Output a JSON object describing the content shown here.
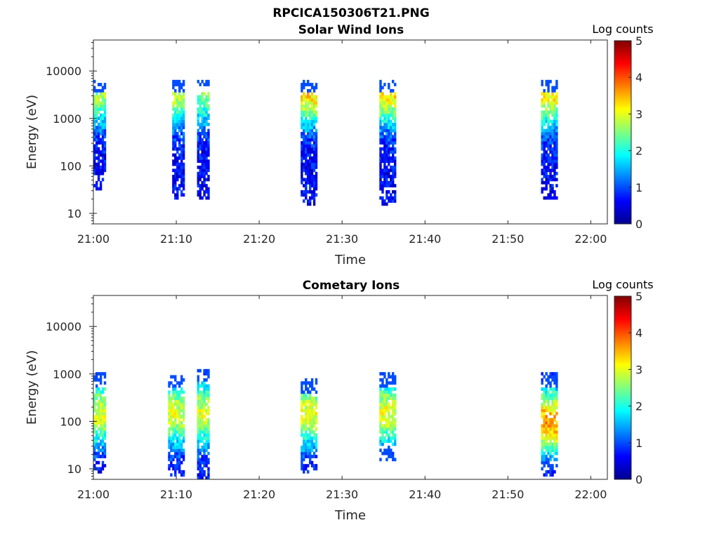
{
  "figure_title": "RPCICA150306T21.PNG",
  "chart_data": [
    {
      "type": "heatmap",
      "title": "Solar Wind Ions",
      "xlabel": "Time",
      "ylabel": "Energy (eV)",
      "x_ticks": [
        "21:00",
        "21:10",
        "21:20",
        "21:30",
        "21:40",
        "21:50",
        "22:00"
      ],
      "x_range": [
        "21:00",
        "22:02"
      ],
      "y_scale": "log",
      "y_ticks": [
        10,
        100,
        1000,
        10000
      ],
      "y_range": [
        6,
        45000
      ],
      "colorbar": {
        "label": "Log counts",
        "range": [
          0,
          5
        ],
        "ticks": [
          0,
          1,
          2,
          3,
          4,
          5
        ],
        "colormap": "jet"
      },
      "bursts": [
        {
          "t_start": "21:00",
          "t_end": "21:01.5",
          "e_low": 30,
          "e_high": 7000,
          "peak_log_counts": 2.7,
          "peak_energy": 3500
        },
        {
          "t_start": "21:09.5",
          "t_end": "21:11",
          "e_low": 20,
          "e_high": 7000,
          "peak_log_counts": 2.8,
          "peak_energy": 3500
        },
        {
          "t_start": "21:12.5",
          "t_end": "21:14",
          "e_low": 20,
          "e_high": 7000,
          "peak_log_counts": 2.5,
          "peak_energy": 3500
        },
        {
          "t_start": "21:25",
          "t_end": "21:27",
          "e_low": 15,
          "e_high": 7000,
          "peak_log_counts": 3.3,
          "peak_energy": 3500
        },
        {
          "t_start": "21:34.5",
          "t_end": "21:36.5",
          "e_low": 15,
          "e_high": 7000,
          "peak_log_counts": 3.2,
          "peak_energy": 3500
        },
        {
          "t_start": "21:54",
          "t_end": "21:56",
          "e_low": 20,
          "e_high": 7000,
          "peak_log_counts": 3.2,
          "peak_energy": 3500
        }
      ]
    },
    {
      "type": "heatmap",
      "title": "Cometary Ions",
      "xlabel": "Time",
      "ylabel": "Energy (eV)",
      "x_ticks": [
        "21:00",
        "21:10",
        "21:20",
        "21:30",
        "21:40",
        "21:50",
        "22:00"
      ],
      "x_range": [
        "21:00",
        "22:02"
      ],
      "y_scale": "log",
      "y_ticks": [
        10,
        100,
        1000,
        10000
      ],
      "y_range": [
        6,
        45000
      ],
      "colorbar": {
        "label": "Log counts",
        "range": [
          0,
          5
        ],
        "ticks": [
          0,
          1,
          2,
          3,
          4,
          5
        ],
        "colormap": "jet"
      },
      "bursts": [
        {
          "t_start": "21:00",
          "t_end": "21:01.5",
          "e_low": 8,
          "e_high": 1100,
          "peak_log_counts": 2.9,
          "peak_energy": 150
        },
        {
          "t_start": "21:09",
          "t_end": "21:11",
          "e_low": 7,
          "e_high": 1000,
          "peak_log_counts": 2.9,
          "peak_energy": 150
        },
        {
          "t_start": "21:12.5",
          "t_end": "21:14",
          "e_low": 6,
          "e_high": 1300,
          "peak_log_counts": 2.9,
          "peak_energy": 150
        },
        {
          "t_start": "21:25",
          "t_end": "21:27",
          "e_low": 8,
          "e_high": 800,
          "peak_log_counts": 3.0,
          "peak_energy": 150
        },
        {
          "t_start": "21:34.5",
          "t_end": "21:36.5",
          "e_low": 15,
          "e_high": 1100,
          "peak_log_counts": 3.0,
          "peak_energy": 150
        },
        {
          "t_start": "21:54",
          "t_end": "21:56",
          "e_low": 7,
          "e_high": 1100,
          "peak_log_counts": 3.6,
          "peak_energy": 100
        }
      ]
    }
  ]
}
